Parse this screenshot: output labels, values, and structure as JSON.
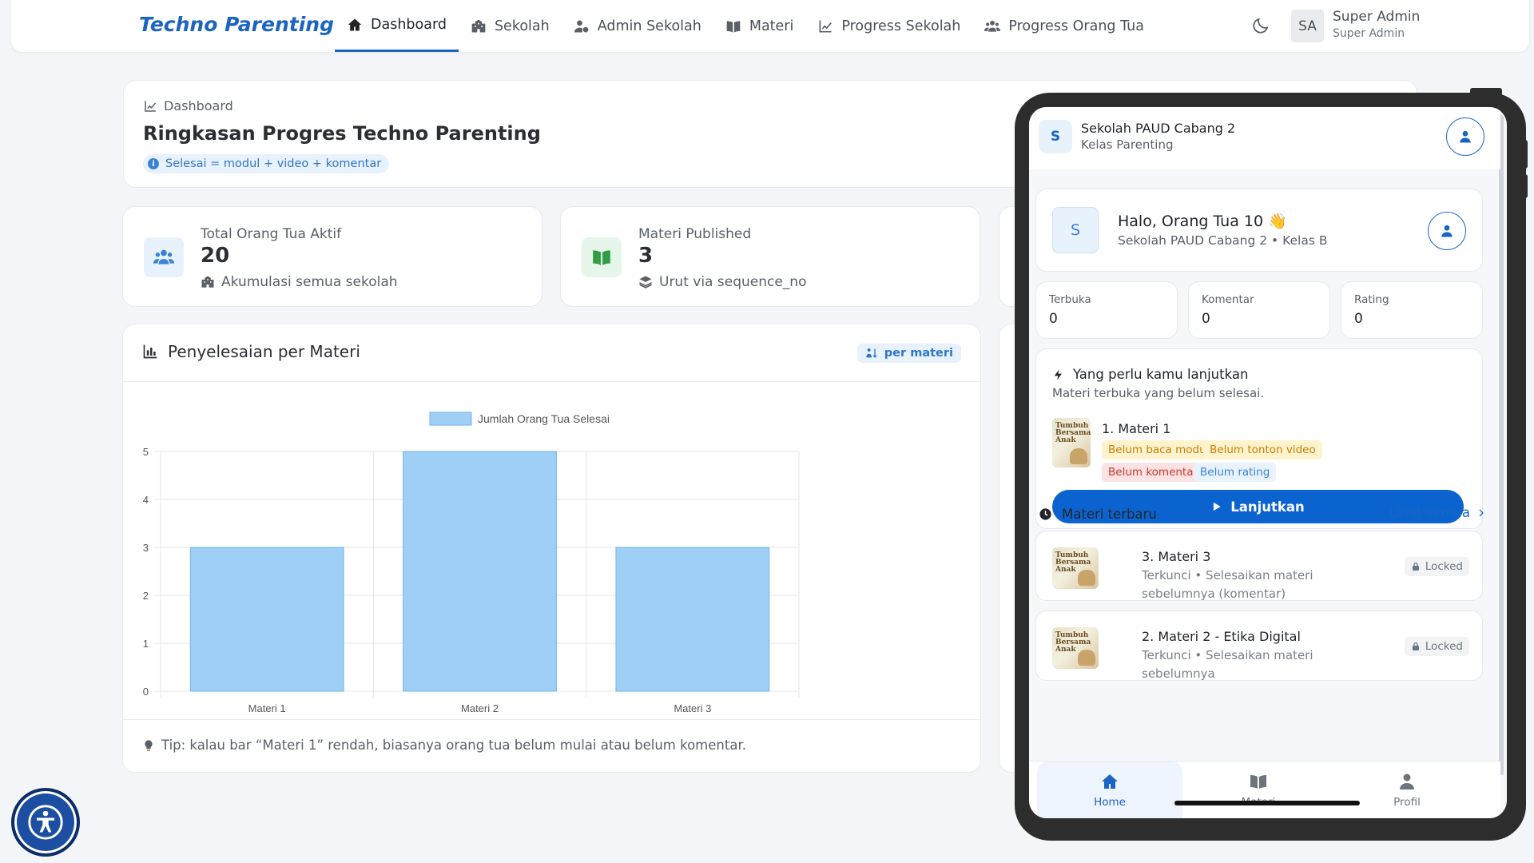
{
  "brand": "Techno Parenting",
  "nav": [
    {
      "label": "Dashboard"
    },
    {
      "label": "Sekolah"
    },
    {
      "label": "Admin Sekolah"
    },
    {
      "label": "Materi"
    },
    {
      "label": "Progress Sekolah"
    },
    {
      "label": "Progress Orang Tua"
    }
  ],
  "user": {
    "initials": "SA",
    "name": "Super Admin",
    "role": "Super Admin"
  },
  "summary": {
    "breadcrumb": "Dashboard",
    "title": "Ringkasan Progres Techno Parenting",
    "info": "Selesai = modul + video + komentar"
  },
  "stats": [
    {
      "label": "Total Orang Tua Aktif",
      "value": "20",
      "sub": "Akumulasi semua sekolah"
    },
    {
      "label": "Materi Published",
      "value": "3",
      "sub": "Urut via sequence_no"
    }
  ],
  "chart_card": {
    "title": "Penyelesaian per Materi",
    "chip": "per materi",
    "tip": "Tip: kalau bar “Materi 1” rendah, biasanya orang tua belum mulai atau belum komentar."
  },
  "chart_data": {
    "type": "bar",
    "categories": [
      "Materi 1",
      "Materi 2",
      "Materi 3"
    ],
    "series": [
      {
        "name": "Jumlah Orang Tua Selesai",
        "values": [
          3,
          5,
          3
        ]
      }
    ],
    "ylim": [
      0,
      5
    ],
    "yticks": [
      "0",
      "1",
      "2",
      "3",
      "4",
      "5"
    ],
    "grid": true,
    "legend": "top",
    "color": "#9fcff5"
  },
  "phone": {
    "header": {
      "badge": "S",
      "school": "Sekolah PAUD Cabang 2",
      "class": "Kelas Parenting"
    },
    "greeting": {
      "avatar": "S",
      "title": "Halo, Orang Tua 10 👋",
      "sub": "Sekolah PAUD Cabang 2 • Kelas B"
    },
    "mini_stats": [
      {
        "label": "Terbuka",
        "value": "0"
      },
      {
        "label": "Komentar",
        "value": "0"
      },
      {
        "label": "Rating",
        "value": "0"
      }
    ],
    "continue": {
      "title": "Yang perlu kamu lanjutkan",
      "sub": "Materi terbuka yang belum selesai.",
      "item_title": "1. Materi 1",
      "tags": [
        "Belum baca modul",
        "Belum tonton video",
        "Belum komentar",
        "Belum rating"
      ],
      "button": "Lanjutkan"
    },
    "latest": {
      "title": "Materi terbaru",
      "see_all": "Lihat semua",
      "items": [
        {
          "title": "3. Materi 3",
          "sub": "Terkunci • Selesaikan materi sebelumnya (komentar)",
          "lock": "Locked"
        },
        {
          "title": "2. Materi 2 - Etika Digital",
          "sub": "Terkunci • Selesaikan materi sebelumnya",
          "lock": "Locked"
        }
      ]
    },
    "thumb_text": "Tumbuh Bersama Anak",
    "bottom_nav": [
      {
        "label": "Home"
      },
      {
        "label": "Materi"
      },
      {
        "label": "Profil"
      }
    ]
  },
  "colors": {
    "primary": "#1b64c2",
    "button": "#0b63d0",
    "bar": "#9fcff5",
    "a11y": "#1c4fa1"
  }
}
